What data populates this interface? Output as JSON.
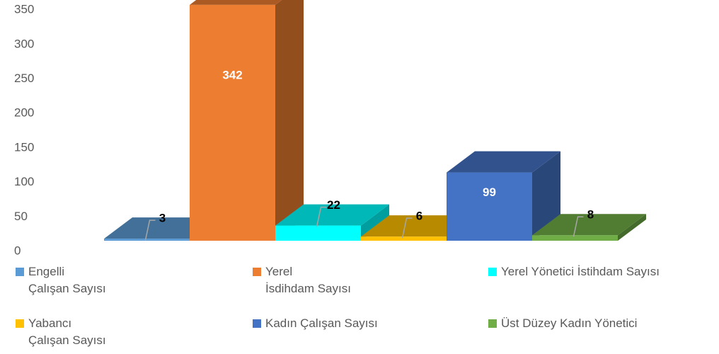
{
  "chart_data": {
    "type": "bar3d",
    "series": [
      {
        "name": "Engelli\nÇalışan Sayısı",
        "color": "#5b9bd5",
        "values": [
          3
        ]
      },
      {
        "name": "Yerel\nİsdihdam Sayısı",
        "color": "#ed7d31",
        "values": [
          342
        ]
      },
      {
        "name": "Yerel Yönetici İstihdam Sayısı",
        "color": "#00ffff",
        "values": [
          22
        ]
      },
      {
        "name": "Yabancı\nÇalışan Sayısı",
        "color": "#ffc000",
        "values": [
          6
        ]
      },
      {
        "name": "Kadın Çalışan Sayısı",
        "color": "#4472c4",
        "values": [
          99
        ]
      },
      {
        "name": "Üst Düzey Kadın Yönetici",
        "color": "#70ad47",
        "values": [
          8
        ]
      }
    ],
    "ylim": [
      0,
      350
    ],
    "yticks": [
      0,
      50,
      100,
      150,
      200,
      250,
      300,
      350
    ]
  }
}
